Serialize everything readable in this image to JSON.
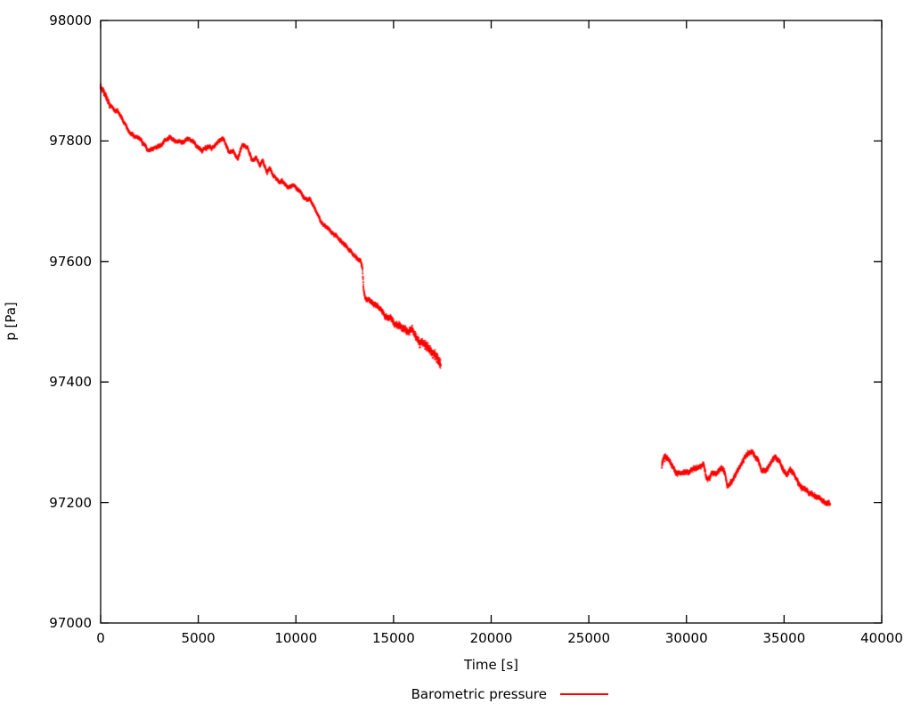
{
  "chart_data": {
    "type": "scatter",
    "title": "",
    "xlabel": "Time [s]",
    "ylabel": "p [Pa]",
    "legend_label": "Barometric pressure",
    "legend_position": "bottom-center",
    "grid": false,
    "background_color": "#ffffff",
    "axis_color": "#000000",
    "series_color": "#ff0000",
    "xlim": [
      0,
      40000
    ],
    "ylim": [
      97000,
      98000
    ],
    "x_ticks": [
      0,
      5000,
      10000,
      15000,
      20000,
      25000,
      30000,
      35000,
      40000
    ],
    "y_ticks": [
      97000,
      97200,
      97400,
      97600,
      97800,
      98000
    ],
    "style": "dense-dots",
    "series": [
      {
        "name": "Barometric pressure",
        "color": "#ff0000",
        "segments": [
          [
            [
              0,
              97891
            ],
            [
              230,
              97877
            ],
            [
              460,
              97864
            ],
            [
              690,
              97855
            ],
            [
              870,
              97852
            ],
            [
              1100,
              97840
            ],
            [
              1370,
              97823
            ],
            [
              1690,
              97809
            ],
            [
              2050,
              97802
            ],
            [
              2460,
              97786
            ],
            [
              2740,
              97790
            ],
            [
              3150,
              97798
            ],
            [
              3510,
              97805
            ],
            [
              3830,
              97798
            ],
            [
              4200,
              97800
            ],
            [
              4560,
              97805
            ],
            [
              4880,
              97790
            ],
            [
              5200,
              97783
            ],
            [
              5470,
              97790
            ],
            [
              5790,
              97787
            ],
            [
              6110,
              97798
            ],
            [
              6250,
              97804
            ],
            [
              6570,
              97779
            ],
            [
              6800,
              97786
            ],
            [
              7020,
              97773
            ],
            [
              7250,
              97797
            ],
            [
              7530,
              97792
            ],
            [
              7750,
              97771
            ],
            [
              7980,
              97774
            ],
            [
              8160,
              97758
            ],
            [
              8300,
              97768
            ],
            [
              8530,
              97749
            ],
            [
              8670,
              97756
            ],
            [
              8850,
              97746
            ],
            [
              9120,
              97734
            ],
            [
              9300,
              97736
            ],
            [
              9580,
              97727
            ],
            [
              9900,
              97729
            ],
            [
              10220,
              97719
            ],
            [
              10490,
              97705
            ],
            [
              10670,
              97707
            ],
            [
              10950,
              97693
            ],
            [
              11270,
              97669
            ],
            [
              11590,
              97660
            ],
            [
              11860,
              97647
            ],
            [
              12180,
              97640
            ],
            [
              12500,
              97631
            ],
            [
              12770,
              97620
            ],
            [
              13090,
              97610
            ],
            [
              13320,
              97603
            ],
            [
              13410,
              97592
            ],
            [
              13460,
              97560
            ],
            [
              13550,
              97542
            ],
            [
              13780,
              97535
            ],
            [
              14000,
              97529
            ],
            [
              14320,
              97520
            ],
            [
              14600,
              97507
            ],
            [
              14910,
              97505
            ],
            [
              15050,
              97499
            ],
            [
              15370,
              97491
            ],
            [
              15690,
              97480
            ],
            [
              15960,
              97484
            ],
            [
              16280,
              97470
            ],
            [
              16600,
              97461
            ],
            [
              16880,
              97454
            ],
            [
              17200,
              97446
            ],
            [
              17420,
              97432
            ]
          ],
          [
            [
              28740,
              97262
            ],
            [
              28870,
              97276
            ],
            [
              29050,
              97270
            ],
            [
              29280,
              97259
            ],
            [
              29510,
              97251
            ],
            [
              29830,
              97254
            ],
            [
              30100,
              97252
            ],
            [
              30420,
              97255
            ],
            [
              30650,
              97260
            ],
            [
              30880,
              97263
            ],
            [
              31000,
              97242
            ],
            [
              31150,
              97240
            ],
            [
              31350,
              97253
            ],
            [
              31500,
              97249
            ],
            [
              31790,
              97262
            ],
            [
              31970,
              97252
            ],
            [
              32110,
              97229
            ],
            [
              32340,
              97239
            ],
            [
              32570,
              97254
            ],
            [
              32790,
              97266
            ],
            [
              33020,
              97281
            ],
            [
              33250,
              97287
            ],
            [
              33480,
              97282
            ],
            [
              33660,
              97272
            ],
            [
              33840,
              97254
            ],
            [
              34070,
              97254
            ],
            [
              34300,
              97266
            ],
            [
              34530,
              97276
            ],
            [
              34760,
              97269
            ],
            [
              34980,
              97257
            ],
            [
              35120,
              97248
            ],
            [
              35300,
              97259
            ],
            [
              35440,
              97251
            ],
            [
              35670,
              97239
            ],
            [
              35900,
              97227
            ],
            [
              36120,
              97223
            ],
            [
              36350,
              97218
            ],
            [
              36580,
              97214
            ],
            [
              36810,
              97210
            ],
            [
              37040,
              97204
            ],
            [
              37260,
              97200
            ],
            [
              37350,
              97198
            ]
          ]
        ]
      }
    ]
  }
}
